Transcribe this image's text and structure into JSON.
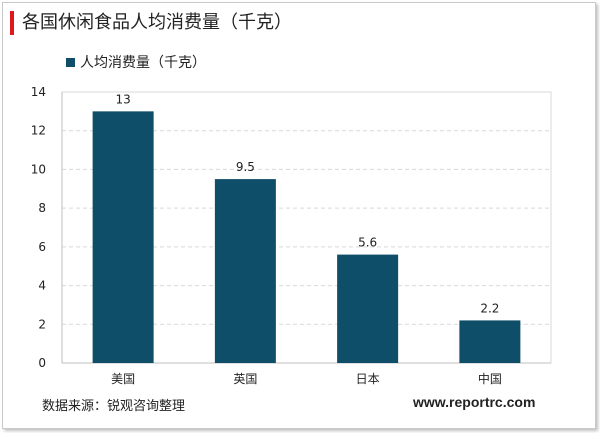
{
  "chart_data": {
    "type": "bar",
    "title": "各国休闲食品人均消费量（千克）",
    "categories": [
      "美国",
      "英国",
      "日本",
      "中国"
    ],
    "series": [
      {
        "name": "人均消费量（千克）",
        "values": [
          13,
          9.5,
          5.6,
          2.2
        ],
        "labels": [
          "13",
          "9.5",
          "5.6",
          "2.2"
        ]
      }
    ],
    "ylim": [
      0,
      14
    ],
    "yticks": [
      0,
      2,
      4,
      6,
      8,
      10,
      12,
      14
    ],
    "grid": true,
    "legend": "top-left",
    "colors": {
      "bar": "#0e4e69",
      "title_accent": "#e0181d"
    }
  },
  "footer": {
    "source": "数据来源：锐观咨询整理",
    "website": "www.reportrc.com"
  }
}
